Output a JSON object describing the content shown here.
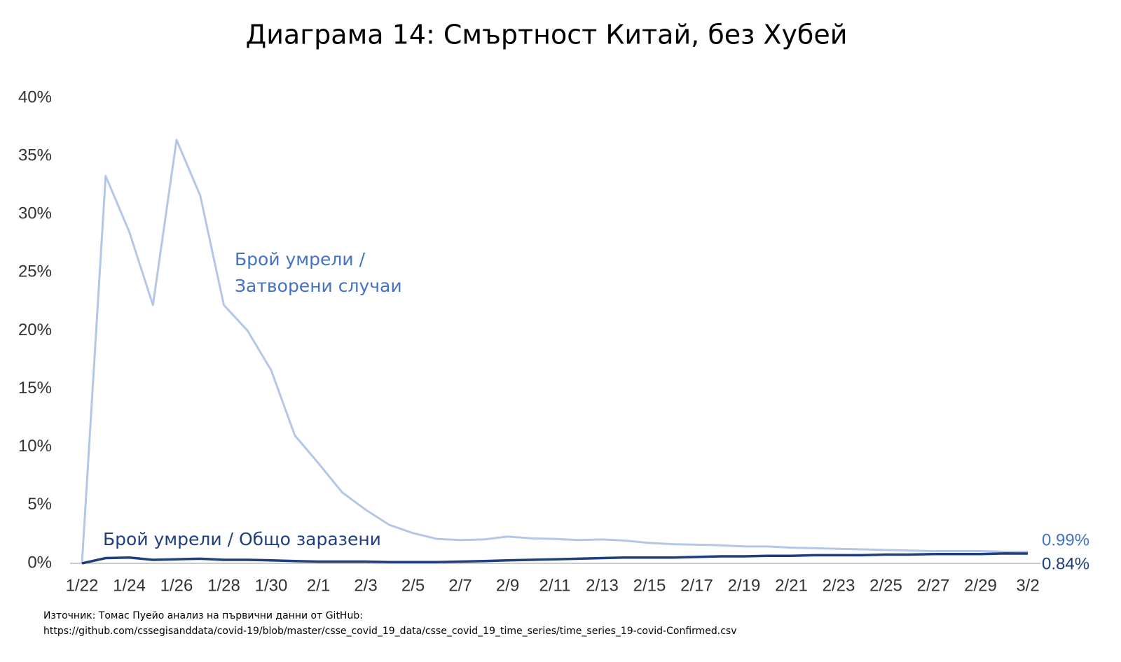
{
  "chart_data": {
    "type": "line",
    "title": "Диаграма 14: Смъртност Китай, без Хубей",
    "categories": [
      "1/22",
      null,
      "1/24",
      null,
      "1/26",
      null,
      "1/28",
      null,
      "1/30",
      null,
      "2/1",
      null,
      "2/3",
      null,
      "2/5",
      null,
      "2/7",
      null,
      "2/9",
      null,
      "2/11",
      null,
      "2/13",
      null,
      "2/15",
      null,
      "2/17",
      null,
      "2/19",
      null,
      "2/21",
      null,
      "2/23",
      null,
      "2/25",
      null,
      "2/27",
      null,
      "2/29",
      null,
      "3/2"
    ],
    "series": [
      {
        "name": "Брой умрели / Затворени случаи",
        "color": "#b4c7e7",
        "values": [
          0,
          33.3,
          28.5,
          22.2,
          36.4,
          31.6,
          22.2,
          20.0,
          16.6,
          11.0,
          8.6,
          6.1,
          4.6,
          3.3,
          2.6,
          2.1,
          2.0,
          2.05,
          2.3,
          2.15,
          2.1,
          2.0,
          2.05,
          1.95,
          1.75,
          1.65,
          1.6,
          1.55,
          1.45,
          1.45,
          1.35,
          1.3,
          1.25,
          1.2,
          1.15,
          1.1,
          1.05,
          1.05,
          1.05,
          1.0,
          0.99
        ],
        "value_labels": [
          null,
          null,
          null,
          null,
          null,
          null,
          null,
          null,
          null,
          null,
          null,
          null,
          null,
          null,
          null,
          null,
          null,
          null,
          null,
          null,
          null,
          null,
          null,
          null,
          null,
          null,
          null,
          null,
          null,
          null,
          null,
          null,
          null,
          null,
          null,
          null,
          null,
          null,
          null,
          null,
          "0.99%"
        ]
      },
      {
        "name": "Брой умрели / Общо заразени",
        "color": "#203f7f",
        "values": [
          0,
          0.45,
          0.5,
          0.3,
          0.35,
          0.4,
          0.3,
          0.3,
          0.25,
          0.2,
          0.15,
          0.15,
          0.15,
          0.1,
          0.1,
          0.1,
          0.15,
          0.2,
          0.25,
          0.3,
          0.35,
          0.4,
          0.45,
          0.5,
          0.5,
          0.5,
          0.55,
          0.6,
          0.6,
          0.65,
          0.65,
          0.7,
          0.7,
          0.7,
          0.75,
          0.75,
          0.8,
          0.8,
          0.8,
          0.85,
          0.84
        ],
        "value_labels": [
          null,
          null,
          null,
          null,
          null,
          null,
          null,
          null,
          null,
          null,
          null,
          null,
          null,
          null,
          null,
          null,
          null,
          null,
          null,
          null,
          null,
          null,
          null,
          null,
          null,
          null,
          null,
          null,
          null,
          null,
          null,
          null,
          null,
          null,
          null,
          null,
          null,
          null,
          null,
          null,
          "0.84%"
        ]
      }
    ],
    "ylim": [
      0,
      40
    ],
    "yticks": [
      {
        "value": 0,
        "label": "0%"
      },
      {
        "value": 5,
        "label": "5%"
      },
      {
        "value": 10,
        "label": "10%"
      },
      {
        "value": 15,
        "label": "15%"
      },
      {
        "value": 20,
        "label": "20%"
      },
      {
        "value": 25,
        "label": "25%"
      },
      {
        "value": 30,
        "label": "30%"
      },
      {
        "value": 35,
        "label": "35%"
      },
      {
        "value": 40,
        "label": "40%"
      }
    ],
    "grid": false,
    "source": [
      "Източник: Томас Пуейо анализ на първични данни от GitHub:",
      "https://github.com/cssegisanddata/covid-19/blob/master/csse_covid_19_data/csse_covid_19_time_series/time_series_19-covid-Confirmed.csv"
    ]
  }
}
